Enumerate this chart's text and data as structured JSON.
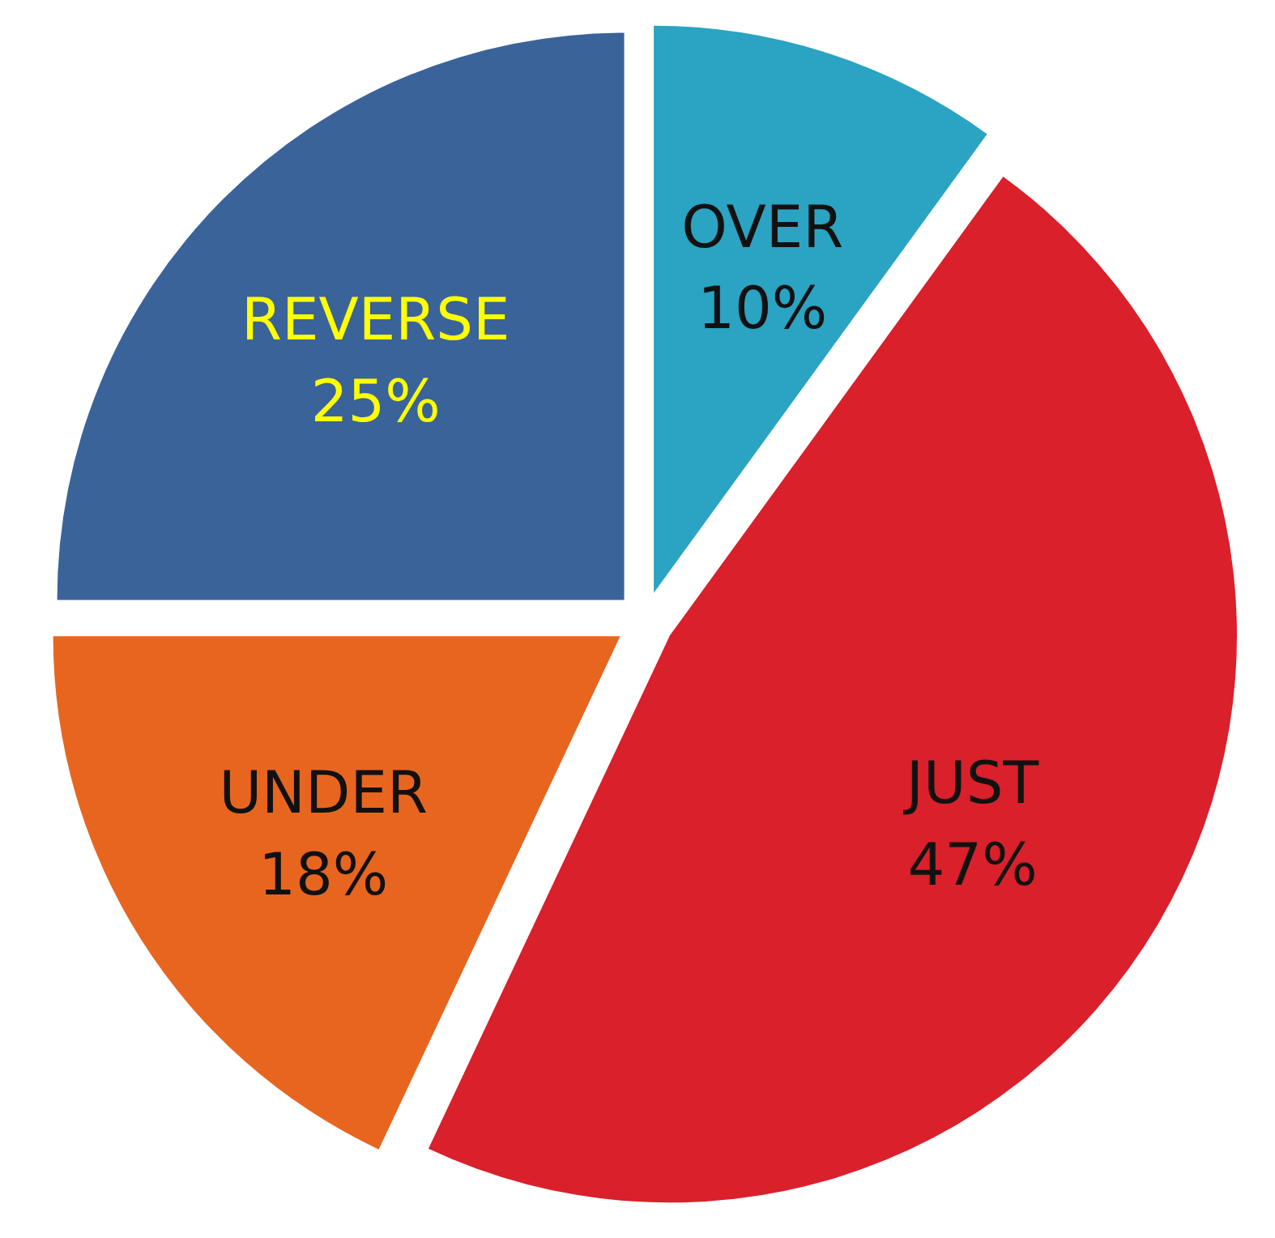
{
  "chart_data": {
    "type": "pie",
    "categories": [
      "OVER",
      "JUST",
      "UNDER",
      "REVERSE"
    ],
    "values": [
      10,
      47,
      18,
      25
    ],
    "value_labels": [
      "10%",
      "47%",
      "18%",
      "25%"
    ],
    "colors": [
      "#2ba3c2",
      "#d9202b",
      "#e8651f",
      "#3a6399"
    ]
  }
}
